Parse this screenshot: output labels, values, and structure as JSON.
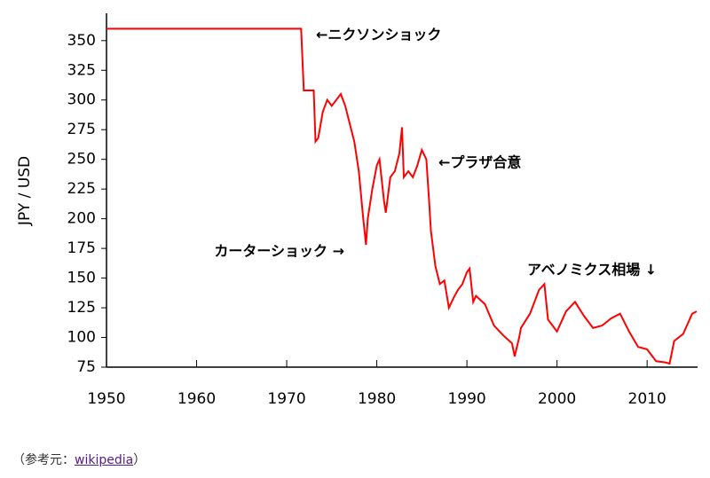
{
  "chart_data": {
    "type": "line",
    "y_label": "JPY / USD",
    "x": [
      1950,
      1971.6,
      1971.9,
      1973.0,
      1973.2,
      1973.5,
      1974,
      1974.5,
      1975,
      1975.5,
      1976,
      1976.5,
      1977,
      1977.5,
      1978,
      1978.5,
      1978.8,
      1979,
      1979.5,
      1980,
      1980.3,
      1980.8,
      1981,
      1981.5,
      1982,
      1982.5,
      1982.8,
      1983,
      1983.5,
      1984,
      1984.5,
      1985,
      1985.5,
      1985.8,
      1986,
      1986.5,
      1987,
      1987.5,
      1988,
      1988.5,
      1989,
      1989.5,
      1990,
      1990.3,
      1990.7,
      1991,
      1992,
      1993,
      1994,
      1995,
      1995.3,
      1995.8,
      1996,
      1997,
      1998,
      1998.6,
      1999,
      2000,
      2001,
      2002,
      2003,
      2004,
      2005,
      2006,
      2007,
      2008,
      2009,
      2010,
      2011,
      2012,
      2012.5,
      2013,
      2014,
      2015,
      2015.5
    ],
    "series": [
      {
        "name": "JPY / USD",
        "color": "#ff0000",
        "values": [
          360,
          360,
          308,
          308,
          265,
          268,
          290,
          300,
          295,
          300,
          305,
          295,
          280,
          265,
          240,
          200,
          178,
          200,
          225,
          245,
          250,
          215,
          205,
          235,
          240,
          255,
          277,
          235,
          240,
          235,
          245,
          258,
          250,
          215,
          190,
          160,
          145,
          148,
          125,
          133,
          140,
          145,
          155,
          158,
          130,
          135,
          128,
          110,
          102,
          95,
          84,
          100,
          108,
          120,
          140,
          145,
          115,
          105,
          122,
          130,
          118,
          108,
          110,
          116,
          120,
          105,
          92,
          90,
          80,
          79,
          78,
          97,
          103,
          120,
          122
        ]
      }
    ],
    "xlim": [
      1950,
      2015.6
    ],
    "ylim": [
      75,
      373
    ],
    "xticks": [
      1950,
      1960,
      1970,
      1980,
      1990,
      2000,
      2010
    ],
    "yticks": [
      75,
      100,
      125,
      150,
      175,
      200,
      225,
      250,
      275,
      300,
      325,
      350
    ],
    "annotations": [
      "←ニクソンショック",
      "←プラザ合意",
      "カーターショック →",
      "アベノミクス相場 ↓"
    ]
  },
  "source": {
    "prefix": "（参考元：",
    "link": "wikipedia",
    "suffix": "）"
  }
}
